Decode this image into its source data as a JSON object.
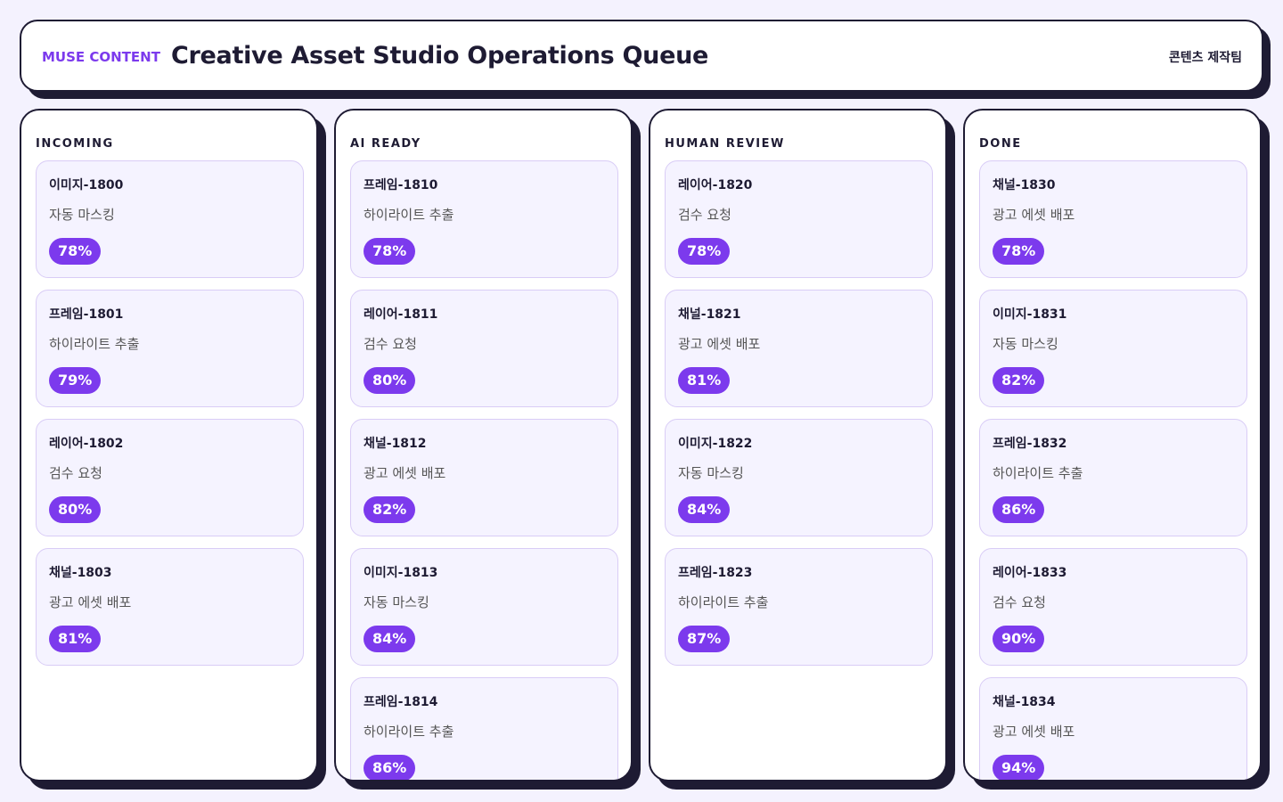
{
  "header": {
    "brand": "MUSE CONTENT",
    "title": "Creative Asset Studio Operations Queue",
    "team": "콘텐츠 제작팀"
  },
  "columns": [
    {
      "title": "INCOMING",
      "cards": [
        {
          "id": "이미지-1800",
          "task": "자동 마스킹",
          "progress": "78%"
        },
        {
          "id": "프레임-1801",
          "task": "하이라이트 추출",
          "progress": "79%"
        },
        {
          "id": "레이어-1802",
          "task": "검수 요청",
          "progress": "80%"
        },
        {
          "id": "채널-1803",
          "task": "광고 에셋 배포",
          "progress": "81%"
        }
      ]
    },
    {
      "title": "AI READY",
      "cards": [
        {
          "id": "프레임-1810",
          "task": "하이라이트 추출",
          "progress": "78%"
        },
        {
          "id": "레이어-1811",
          "task": "검수 요청",
          "progress": "80%"
        },
        {
          "id": "채널-1812",
          "task": "광고 에셋 배포",
          "progress": "82%"
        },
        {
          "id": "이미지-1813",
          "task": "자동 마스킹",
          "progress": "84%"
        },
        {
          "id": "프레임-1814",
          "task": "하이라이트 추출",
          "progress": "86%"
        }
      ]
    },
    {
      "title": "HUMAN REVIEW",
      "cards": [
        {
          "id": "레이어-1820",
          "task": "검수 요청",
          "progress": "78%"
        },
        {
          "id": "채널-1821",
          "task": "광고 에셋 배포",
          "progress": "81%"
        },
        {
          "id": "이미지-1822",
          "task": "자동 마스킹",
          "progress": "84%"
        },
        {
          "id": "프레임-1823",
          "task": "하이라이트 추출",
          "progress": "87%"
        }
      ]
    },
    {
      "title": "DONE",
      "cards": [
        {
          "id": "채널-1830",
          "task": "광고 에셋 배포",
          "progress": "78%"
        },
        {
          "id": "이미지-1831",
          "task": "자동 마스킹",
          "progress": "82%"
        },
        {
          "id": "프레임-1832",
          "task": "하이라이트 추출",
          "progress": "86%"
        },
        {
          "id": "레이어-1833",
          "task": "검수 요청",
          "progress": "90%"
        },
        {
          "id": "채널-1834",
          "task": "광고 에셋 배포",
          "progress": "94%"
        }
      ]
    }
  ]
}
